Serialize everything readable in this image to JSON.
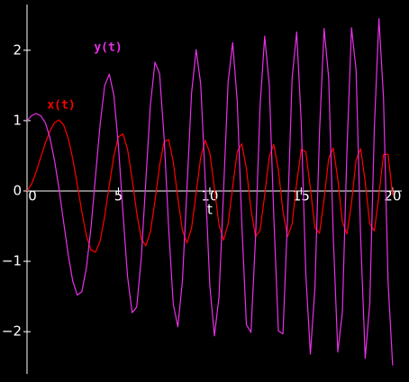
{
  "chart_data": {
    "type": "line",
    "xlabel": "t",
    "x": [
      0,
      0.25,
      0.5,
      0.75,
      1,
      1.25,
      1.5,
      1.75,
      2,
      2.25,
      2.5,
      2.75,
      3,
      3.25,
      3.5,
      3.75,
      4,
      4.25,
      4.5,
      4.75,
      5,
      5.25,
      5.5,
      5.75,
      6,
      6.25,
      6.5,
      6.75,
      7,
      7.25,
      7.5,
      7.75,
      8,
      8.25,
      8.5,
      8.75,
      9,
      9.25,
      9.5,
      9.75,
      10,
      10.25,
      10.5,
      10.75,
      11,
      11.25,
      11.5,
      11.75,
      12,
      12.25,
      12.5,
      12.75,
      13,
      13.25,
      13.5,
      13.75,
      14,
      14.25,
      14.5,
      14.75,
      15,
      15.25,
      15.5,
      15.75,
      16,
      16.25,
      16.5,
      16.75,
      17,
      17.25,
      17.5,
      17.75,
      18,
      18.25,
      18.5,
      18.75,
      19,
      19.25,
      19.5,
      19.75,
      20
    ],
    "series": [
      {
        "name": "x(t)",
        "color": "#ff0000",
        "values": [
          0,
          0.1,
          0.27,
          0.48,
          0.68,
          0.85,
          0.97,
          1.01,
          0.94,
          0.75,
          0.46,
          0.09,
          -0.3,
          -0.64,
          -0.84,
          -0.87,
          -0.71,
          -0.36,
          0.08,
          0.5,
          0.77,
          0.81,
          0.59,
          0.17,
          -0.31,
          -0.68,
          -0.78,
          -0.58,
          -0.14,
          0.36,
          0.7,
          0.73,
          0.41,
          -0.1,
          -0.56,
          -0.74,
          -0.53,
          -0.03,
          0.48,
          0.72,
          0.54,
          0.04,
          -0.48,
          -0.7,
          -0.47,
          0.06,
          0.56,
          0.67,
          0.32,
          -0.26,
          -0.65,
          -0.56,
          -0.06,
          0.49,
          0.66,
          0.3,
          -0.29,
          -0.65,
          -0.47,
          0.11,
          0.59,
          0.56,
          0.03,
          -0.52,
          -0.6,
          -0.12,
          0.46,
          0.61,
          0.17,
          -0.44,
          -0.61,
          -0.17,
          0.44,
          0.6,
          0.13,
          -0.47,
          -0.57,
          -0.06,
          0.52,
          0.52,
          -0.06
        ]
      },
      {
        "name": "y(t)",
        "color": "#e830e8",
        "values": [
          1,
          1.07,
          1.1,
          1.07,
          0.97,
          0.76,
          0.44,
          0.03,
          -0.44,
          -0.9,
          -1.28,
          -1.48,
          -1.43,
          -1.09,
          -0.52,
          0.22,
          0.95,
          1.5,
          1.66,
          1.36,
          0.64,
          -0.32,
          -1.22,
          -1.73,
          -1.65,
          -0.95,
          0.15,
          1.23,
          1.83,
          1.67,
          0.75,
          -0.54,
          -1.61,
          -1.93,
          -1.28,
          0.04,
          1.39,
          2.01,
          1.52,
          0.14,
          -1.35,
          -2.06,
          -1.51,
          0,
          1.55,
          2.11,
          1.27,
          -0.47,
          -1.9,
          -2.01,
          -0.66,
          1.22,
          2.2,
          1.51,
          -0.37,
          -1.99,
          -2.03,
          -0.39,
          1.6,
          2.26,
          0.97,
          -1.18,
          -2.32,
          -1.37,
          0.84,
          2.31,
          1.61,
          -0.63,
          -2.29,
          -1.72,
          0.57,
          2.32,
          1.72,
          -0.66,
          -2.38,
          -1.59,
          0.91,
          2.45,
          1.32,
          -1.29,
          -2.48
        ]
      }
    ],
    "xlim": [
      0,
      20.5
    ],
    "ylim": [
      -2.6,
      2.65
    ],
    "xticks": [
      0,
      5,
      10,
      15,
      20
    ],
    "yticks": [
      {
        "value": -2,
        "label": "−2"
      },
      {
        "value": -1,
        "label": "−1"
      },
      0,
      1,
      2
    ]
  }
}
